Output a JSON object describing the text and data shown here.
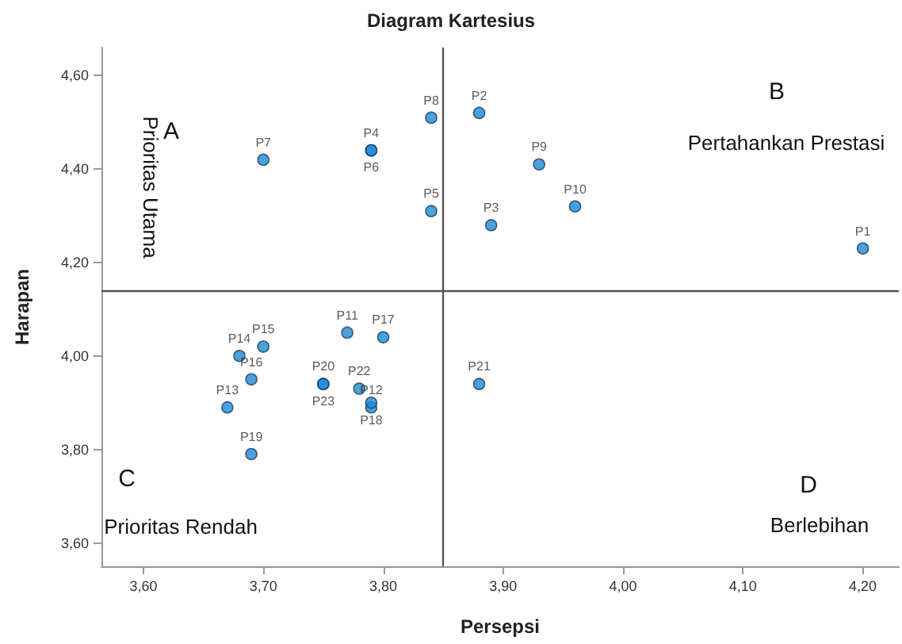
{
  "chart_data": {
    "type": "scatter",
    "title": "Diagram Kartesius",
    "xlabel": "Persepsi",
    "ylabel": "Harapan",
    "x": [
      4.2,
      3.88,
      3.89,
      3.79,
      3.84,
      3.79,
      3.7,
      3.84,
      3.93,
      3.96,
      3.77,
      3.79,
      3.67,
      3.68,
      3.7,
      3.69,
      3.8,
      3.79,
      3.69,
      3.75,
      3.88,
      3.78,
      3.75
    ],
    "values": [
      4.23,
      4.52,
      4.28,
      4.44,
      4.31,
      4.44,
      4.42,
      4.51,
      4.41,
      4.32,
      4.05,
      3.89,
      3.89,
      4.0,
      4.02,
      3.95,
      4.04,
      3.9,
      3.79,
      3.94,
      3.94,
      3.93,
      3.94
    ],
    "value_labels": [
      "P1",
      "P2",
      "P3",
      "P4",
      "P5",
      "P6",
      "P7",
      "P8",
      "P9",
      "P10",
      "P11",
      "P12",
      "P13",
      "P14",
      "P15",
      "P16",
      "P17",
      "P18",
      "P19",
      "P20",
      "P21",
      "P22",
      "P23"
    ],
    "color": "#1e88d6",
    "marker": "circle",
    "xlim": [
      3.565,
      4.23
    ],
    "xticks": [
      {
        "value": 3.6,
        "label": "3,60"
      },
      {
        "value": 3.7,
        "label": "3,70"
      },
      {
        "value": 3.8,
        "label": "3,80"
      },
      {
        "value": 3.9,
        "label": "3,90"
      },
      {
        "value": 4.0,
        "label": "4,00"
      },
      {
        "value": 4.1,
        "label": "4,10"
      },
      {
        "value": 4.2,
        "label": "4,20"
      }
    ],
    "ylim": [
      3.55,
      4.66
    ],
    "yticks": [
      {
        "value": 3.6,
        "label": "3,60"
      },
      {
        "value": 3.8,
        "label": "3,80"
      },
      {
        "value": 4.0,
        "label": "4,00"
      },
      {
        "value": 4.2,
        "label": "4,20"
      },
      {
        "value": 4.4,
        "label": "4,40"
      },
      {
        "value": 4.6,
        "label": "4,60"
      }
    ],
    "grid": false,
    "ref_lines": [
      {
        "axis": "x",
        "value": 3.85,
        "color": "#555555"
      },
      {
        "axis": "y",
        "value": 4.14,
        "color": "#555555"
      }
    ],
    "annotations": [
      "A",
      "Prioritas Utama",
      "B",
      "Pertahankan Prestasi",
      "C",
      "Prioritas Rendah",
      "D",
      "Berlebihan"
    ]
  }
}
